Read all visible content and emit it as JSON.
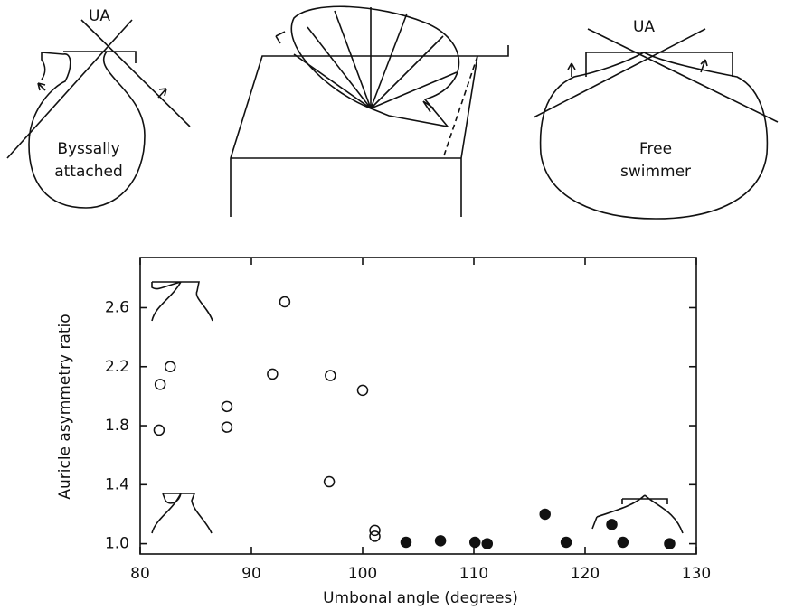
{
  "diagrams": {
    "left_label_top": "UA",
    "left_text": [
      "Byssally",
      "attached"
    ],
    "right_label_top": "UA",
    "right_text": [
      "Free",
      "swimmer"
    ]
  },
  "chart_data": {
    "type": "scatter",
    "xlabel": "Umbonal angle (degrees)",
    "ylabel": "Auricle asymmetry ratio",
    "xlim": [
      80,
      130
    ],
    "xticks": [
      80,
      90,
      100,
      110,
      120,
      130
    ],
    "ylim": [
      0.93,
      2.94
    ],
    "yticks": [
      {
        "value": 1,
        "label": "1.0"
      },
      1.4,
      1.8,
      2.2,
      2.6
    ],
    "series": [
      {
        "color": "#111111",
        "marker": "open",
        "x": [
          81.7,
          81.8,
          82.7,
          87.8,
          87.8,
          91.9,
          93.0,
          97.1,
          97.0,
          100.0,
          101.1,
          101.1
        ],
        "values": [
          1.77,
          2.08,
          2.2,
          1.93,
          1.79,
          2.15,
          2.64,
          2.14,
          1.42,
          2.04,
          1.09,
          1.05
        ]
      },
      {
        "color": "#111111",
        "marker": "filled",
        "x": [
          103.9,
          107.0,
          110.1,
          111.2,
          116.4,
          118.3,
          122.4,
          123.4,
          127.6
        ],
        "values": [
          1.01,
          1.02,
          1.01,
          1.0,
          1.2,
          1.01,
          1.13,
          1.01,
          1.0
        ]
      }
    ]
  }
}
